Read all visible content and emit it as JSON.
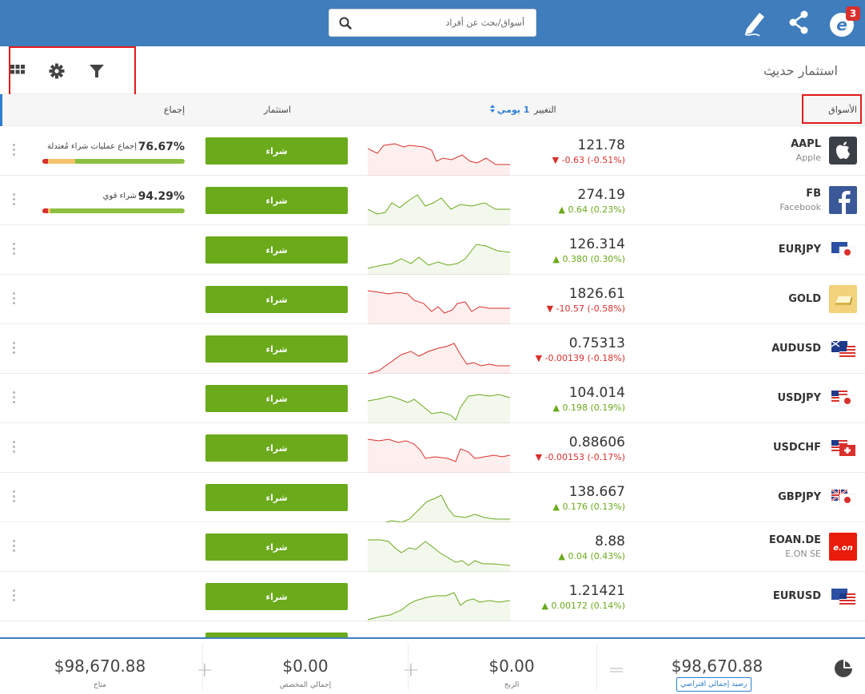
{
  "topbar": {
    "search_placeholder": "أسواق/بحث عن أفراد",
    "notification_count": "3",
    "logo_letter": "e"
  },
  "watchlist": {
    "title": "استثمار حديث"
  },
  "columns": {
    "markets": "الأسواق",
    "change": "التغيير",
    "period": "1 يومي",
    "invest": "استثمار",
    "sentiment": "إجماع"
  },
  "rows": [
    {
      "symbol": "AAPL",
      "name": "Apple",
      "price": "121.78",
      "change": "-0.63 (-0.51%)",
      "dir": "down",
      "buy": "شراء",
      "icon": "apple-logo-icon",
      "sentiment_pct": "76.67%",
      "sentiment_label": "إجماع عمليات شراء مُعتدلة",
      "sentiment_sell": 0.233
    },
    {
      "symbol": "FB",
      "name": "Facebook",
      "price": "274.19",
      "change": "0.64 (0.23%)",
      "dir": "up",
      "buy": "شراء",
      "icon": "facebook-logo-icon",
      "sentiment_pct": "94.29%",
      "sentiment_label": "شراء قوي",
      "sentiment_sell": 0.057
    },
    {
      "symbol": "EURJPY",
      "name": "",
      "price": "126.314",
      "change": "0.380 (0.30%)",
      "dir": "up",
      "buy": "شراء",
      "icon": "eu-jp-flag-icon"
    },
    {
      "symbol": "GOLD",
      "name": "",
      "price": "1826.61",
      "change": "-10.57 (-0.58%)",
      "dir": "down",
      "buy": "شراء",
      "icon": "gold-bar-icon"
    },
    {
      "symbol": "AUDUSD",
      "name": "",
      "price": "0.75313",
      "change": "-0.00139 (-0.18%)",
      "dir": "down",
      "buy": "شراء",
      "icon": "au-us-flag-icon"
    },
    {
      "symbol": "USDJPY",
      "name": "",
      "price": "104.014",
      "change": "0.198 (0.19%)",
      "dir": "up",
      "buy": "شراء",
      "icon": "us-jp-flag-icon"
    },
    {
      "symbol": "USDCHF",
      "name": "",
      "price": "0.88606",
      "change": "-0.00153 (-0.17%)",
      "dir": "down",
      "buy": "شراء",
      "icon": "us-ch-flag-icon"
    },
    {
      "symbol": "GBPJPY",
      "name": "",
      "price": "138.667",
      "change": "0.176 (0.13%)",
      "dir": "up",
      "buy": "شراء",
      "icon": "gb-jp-flag-icon"
    },
    {
      "symbol": "EOAN.DE",
      "name": "E.ON SE",
      "price": "8.88",
      "change": "0.04 (0.43%)",
      "dir": "up",
      "buy": "شراء",
      "icon": "eon-logo-icon"
    },
    {
      "symbol": "EURUSD",
      "name": "",
      "price": "1.21421",
      "change": "0.00172 (0.14%)",
      "dir": "up",
      "buy": "شراء",
      "icon": "eu-us-flag-icon"
    },
    {
      "symbol": "",
      "name": "",
      "price": "",
      "change": "",
      "dir": "up",
      "buy": "",
      "icon": ""
    }
  ],
  "footer": {
    "balance_value": "$98,670.88",
    "balance_label": "رصيد إجمالي افتراضي",
    "profit_value": "$0.00",
    "profit_label": "الربح",
    "allocated_value": "$0.00",
    "allocated_label": "إجمالي المخصص",
    "available_value": "$98,670.88",
    "available_label": "متاح"
  },
  "colors": {
    "brand": "#3f7dbd",
    "buy": "#6aaa1b",
    "down": "#d9302c",
    "up": "#6aaa1b",
    "highlight": "#e41b1b"
  }
}
